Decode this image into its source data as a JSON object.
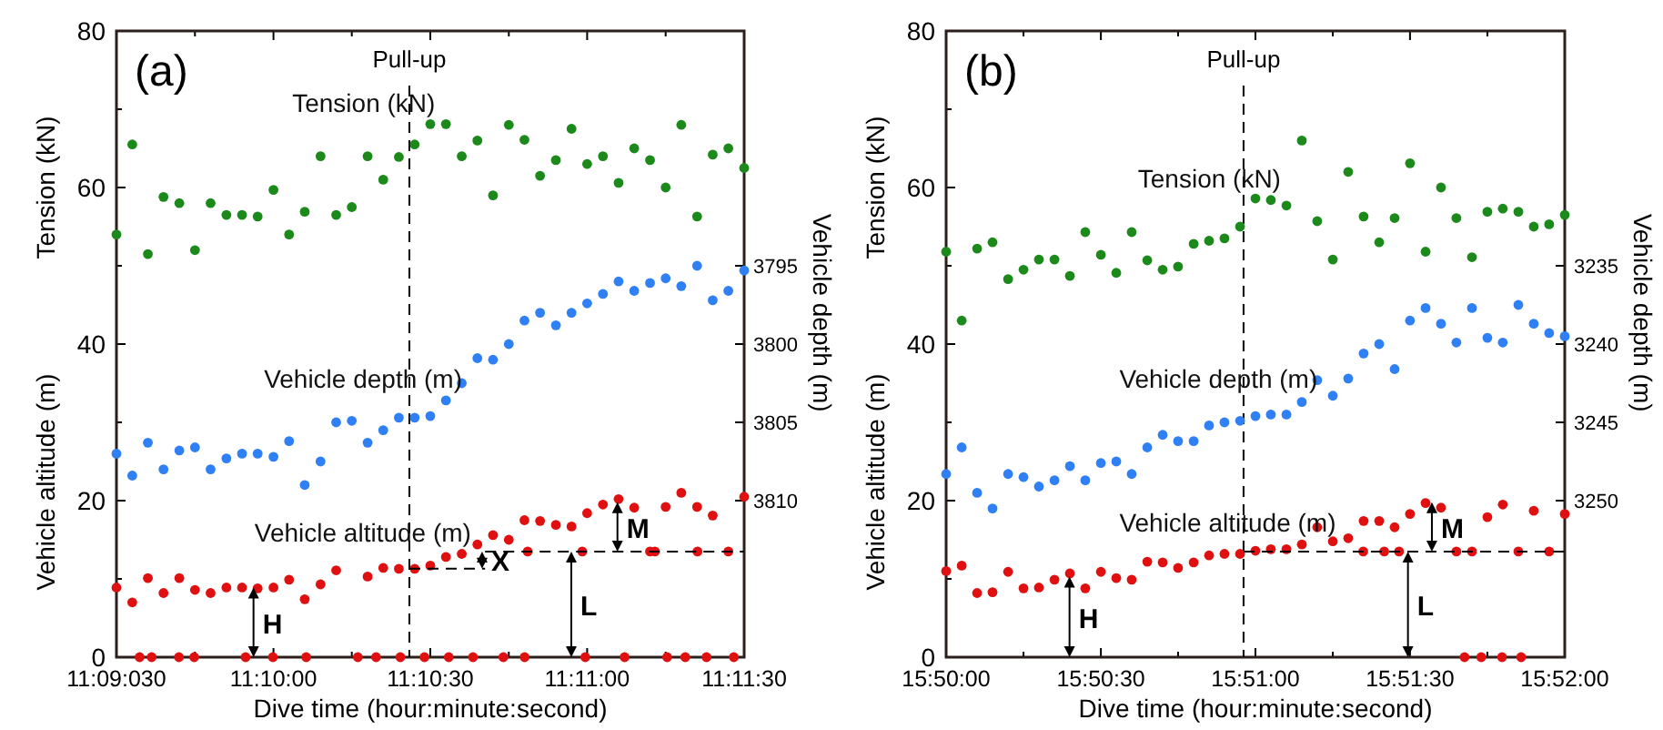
{
  "chart_data": [
    {
      "type": "scatter",
      "xlabel": "Dive time (hour:minute:second)",
      "ylabel": [
        "Tension (kN)",
        "Vehicle altitude (m)"
      ],
      "y2label": "Vehicle depth (m)",
      "marker": "circle",
      "xlim": [
        11.15833,
        11.19167
      ],
      "xticks": [
        {
          "value": 11.15833,
          "label": "11:09:030"
        },
        {
          "value": 11.1625,
          "label": null
        },
        {
          "value": 11.16667,
          "label": "11:10:00"
        },
        {
          "value": 11.17083,
          "label": null
        },
        {
          "value": 11.175,
          "label": "11:10:30"
        },
        {
          "value": 11.17917,
          "label": null
        },
        {
          "value": 11.18333,
          "label": "11:11:00"
        },
        {
          "value": 11.1875,
          "label": null
        },
        {
          "value": 11.19167,
          "label": "11:11:30"
        }
      ],
      "ylim": [
        0,
        80
      ],
      "yticks": [
        0,
        {
          "value": 10,
          "label": null
        },
        20,
        {
          "value": 30,
          "label": null
        },
        40,
        {
          "value": 50,
          "label": null
        },
        60,
        {
          "value": 70,
          "label": null
        },
        80
      ],
      "y2lim": [
        3820,
        3780
      ],
      "y2ticks": [
        3795,
        3800,
        3805,
        3810
      ],
      "x": [
        11.15833,
        11.15917,
        11.16,
        11.16083,
        11.16167,
        11.1625,
        11.16333,
        11.16417,
        11.165,
        11.16583,
        11.16667,
        11.1675,
        11.16833,
        11.16917,
        11.17,
        11.17083,
        11.17167,
        11.1725,
        11.17333,
        11.17417,
        11.175,
        11.17583,
        11.17667,
        11.1775,
        11.17833,
        11.17917,
        11.18,
        11.18083,
        11.18167,
        11.1825,
        11.18333,
        11.18417,
        11.185,
        11.18583,
        11.18667,
        11.1875,
        11.18833,
        11.18917,
        11.19,
        11.19083,
        11.19167
      ],
      "series": [
        {
          "name": "Tension (kN)",
          "color": "#1b8a1b",
          "values": [
            54,
            65.5,
            51.5,
            58.8,
            58,
            52,
            58,
            56.5,
            56.5,
            56.3,
            59.7,
            54,
            56.9,
            64,
            56.5,
            57.5,
            64,
            61,
            63.9,
            65.5,
            68.1,
            68.1,
            64,
            66,
            59,
            68,
            66.1,
            61.5,
            63.5,
            67.5,
            63,
            64,
            60.6,
            65,
            63.5,
            60,
            68,
            56.3,
            64.2,
            65,
            62.5
          ]
        },
        {
          "name": "Vehicle depth (m)",
          "color": "#2f7ff5",
          "axis": "y2",
          "values": [
            3807,
            3808.4,
            3806.3,
            3808,
            3806.8,
            3806.6,
            3808,
            3807.3,
            3807,
            3807,
            3807.2,
            3806.2,
            3809,
            3807.5,
            3805,
            3804.9,
            3806.3,
            3805.5,
            3804.7,
            3804.7,
            3804.6,
            3803.6,
            3802.5,
            3800.9,
            3801,
            3800,
            3798.5,
            3798,
            3798.8,
            3798,
            3797.4,
            3796.8,
            3796,
            3796.6,
            3796.1,
            3795.8,
            3796.3,
            3795,
            3797.2,
            3796.6,
            3795.3
          ]
        },
        {
          "name": "Vehicle altitude (m)",
          "color": "#e01010",
          "values": [
            8.9,
            7,
            10.1,
            8.2,
            10.1,
            8.6,
            8.2,
            8.9,
            8.9,
            8.8,
            8.9,
            9.9,
            7.4,
            9.3,
            11.1,
            null,
            10.3,
            11.4,
            11.3,
            11.3,
            11.7,
            12.8,
            13.2,
            14.4,
            15.6,
            15,
            17.5,
            17.4,
            16.9,
            16.7,
            18.4,
            19.5,
            20.2,
            19.1,
            13.5,
            19.2,
            21,
            19.2,
            18.1,
            13.5,
            20.5
          ]
        },
        {
          "color": "#e01010",
          "x": [
            11.15956,
            11.1602,
            11.16165,
            11.16246,
            11.16519,
            11.16664,
            11.16841,
            11.17115,
            11.17212,
            11.17341,
            11.17469,
            11.17598,
            11.17727,
            11.17888,
            11.18001,
            11.18323,
            11.18532,
            11.18758,
            11.18854,
            11.18967,
            11.19112,
            11.18017,
            11.18307,
            11.18693,
            11.18919
          ],
          "values": [
            0,
            0,
            0,
            0,
            0,
            0,
            0,
            0,
            0,
            0,
            0,
            0,
            0,
            0,
            0,
            0,
            0,
            0,
            0,
            0,
            0,
            13.5,
            13.5,
            13.5,
            13.5
          ]
        },
        {
          "type": "line",
          "color": "#000000",
          "line_style": "dashed",
          "marker": "none",
          "x": [
            11.17389,
            11.17791
          ],
          "values": [
            11.3,
            11.3
          ]
        },
        {
          "type": "line",
          "color": "#000000",
          "line_style": "dashed",
          "marker": "none",
          "x": [
            11.17791,
            11.19167
          ],
          "values": [
            13.5,
            13.5
          ]
        }
      ],
      "ref_lines": [
        {
          "axis": "x",
          "value": 11.17389,
          "label": "Pull-up",
          "color": "#000000",
          "line_style": "dashed"
        }
      ],
      "annotations": [
        "(a)",
        {
          "text": "H",
          "x": 11.16561,
          "y": 8.9
        },
        {
          "text": "X",
          "x": 11.17775,
          "y": 13.5
        },
        {
          "text": "L",
          "x": 11.18249,
          "y": 13.5
        },
        {
          "text": "M",
          "x": 11.18494,
          "y": 19.8
        }
      ]
    },
    {
      "type": "scatter",
      "xlabel": "Dive time (hour:minute:second)",
      "ylabel": [
        "Tension (kN)",
        "Vehicle altitude (m)"
      ],
      "y2label": "Vehicle depth (m)",
      "marker": "circle",
      "xlim": [
        15.83333,
        15.86667
      ],
      "xticks": [
        {
          "value": 15.83333,
          "label": "15:50:00"
        },
        {
          "value": 15.8375,
          "label": null
        },
        {
          "value": 15.84167,
          "label": "15:50:30"
        },
        {
          "value": 15.84583,
          "label": null
        },
        {
          "value": 15.85,
          "label": "15:51:00"
        },
        {
          "value": 15.85417,
          "label": null
        },
        {
          "value": 15.85833,
          "label": "15:51:30"
        },
        {
          "value": 15.8625,
          "label": null
        },
        {
          "value": 15.86667,
          "label": "15:52:00"
        }
      ],
      "ylim": [
        0,
        80
      ],
      "yticks": [
        0,
        {
          "value": 10,
          "label": null
        },
        20,
        {
          "value": 30,
          "label": null
        },
        40,
        {
          "value": 50,
          "label": null
        },
        60,
        {
          "value": 70,
          "label": null
        },
        80
      ],
      "y2lim": [
        3260,
        3220
      ],
      "y2ticks": [
        3235,
        3240,
        3245,
        3250
      ],
      "x": [
        15.83333,
        15.83417,
        15.835,
        15.83583,
        15.83667,
        15.8375,
        15.83833,
        15.83917,
        15.84,
        15.84083,
        15.84167,
        15.8425,
        15.84333,
        15.84417,
        15.845,
        15.84583,
        15.84667,
        15.8475,
        15.84833,
        15.84917,
        15.85,
        15.85083,
        15.85167,
        15.8525,
        15.85333,
        15.85417,
        15.855,
        15.85583,
        15.85667,
        15.8575,
        15.85833,
        15.85917,
        15.86,
        15.86083,
        15.86167,
        15.8625,
        15.86333,
        15.86417,
        15.865,
        15.86583,
        15.86667
      ],
      "series": [
        {
          "name": "Tension (kN)",
          "color": "#1b8a1b",
          "values": [
            51.8,
            43,
            52.2,
            53,
            48.3,
            49.5,
            50.8,
            50.8,
            48.7,
            54.3,
            51.4,
            49.1,
            54.3,
            50.7,
            49.5,
            49.9,
            52.8,
            53.2,
            53.5,
            55,
            58.6,
            58.4,
            57.7,
            66,
            55.7,
            50.8,
            62,
            56.3,
            53,
            56.1,
            63.1,
            51.8,
            60,
            56.1,
            51.1,
            56.9,
            57.3,
            56.9,
            55,
            55.3,
            56.5
          ]
        },
        {
          "name": "Vehicle depth (m)",
          "color": "#2f7ff5",
          "axis": "y2",
          "values": [
            3248.3,
            3246.6,
            3249.5,
            3250.5,
            3248.3,
            3248.5,
            3249.1,
            3248.7,
            3247.8,
            3248.7,
            3247.6,
            3247.5,
            3248.3,
            3246.6,
            3245.8,
            3246.2,
            3246.2,
            3245.2,
            3245,
            3244.9,
            3244.6,
            3244.5,
            3244.5,
            3243.7,
            3242.3,
            3243.3,
            3242.2,
            3240.6,
            3240,
            3241.6,
            3238.5,
            3237.7,
            3238.7,
            3239.9,
            3237.7,
            3239.6,
            3239.9,
            3237.5,
            3238.7,
            3239.3,
            3239.5
          ]
        },
        {
          "name": "Vehicle altitude (m)",
          "color": "#e01010",
          "values": [
            11,
            11.7,
            8.2,
            8.3,
            10.9,
            8.8,
            8.9,
            9.9,
            10.7,
            8.8,
            10.9,
            10.1,
            9.9,
            12.2,
            12.1,
            11.4,
            12.1,
            13,
            13.2,
            13.2,
            13.6,
            13.8,
            13.8,
            14.4,
            16.6,
            14.8,
            15.2,
            17.4,
            17.4,
            16.6,
            18.3,
            19.7,
            19.1,
            13.5,
            13.5,
            17.9,
            19.5,
            13.5,
            18.7,
            13.5,
            18.3
          ]
        },
        {
          "color": "#e01010",
          "x": [
            15.86127,
            15.86217,
            15.86329,
            15.86432,
            15.85581,
            15.85694,
            15.85774
          ],
          "values": [
            0,
            0,
            0,
            0,
            13.5,
            13.5,
            13.5
          ]
        },
        {
          "type": "line",
          "color": "#000000",
          "line_style": "dashed",
          "marker": "none",
          "x": [
            15.84936,
            15.86667
          ],
          "values": [
            13.5,
            13.5
          ]
        }
      ],
      "ref_lines": [
        {
          "axis": "x",
          "value": 15.84936,
          "label": "Pull-up",
          "color": "#000000",
          "line_style": "dashed"
        }
      ],
      "annotations": [
        "(b)",
        {
          "text": "H",
          "x": 15.83998,
          "y": 10.3
        },
        {
          "text": "L",
          "x": 15.85822,
          "y": 13.5
        },
        {
          "text": "M",
          "x": 15.85951,
          "y": 19.8
        }
      ]
    }
  ]
}
